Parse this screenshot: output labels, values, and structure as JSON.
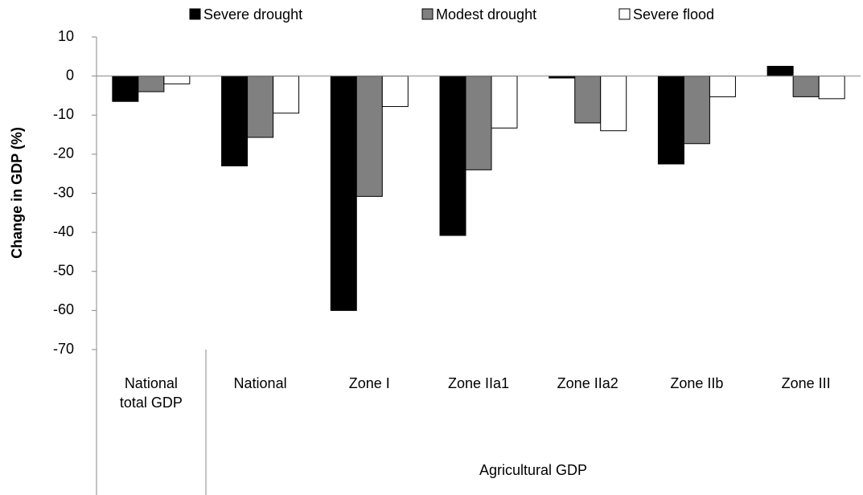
{
  "chart_data": {
    "type": "bar",
    "y_label": "Change in GDP (%)",
    "categories": [
      "National total GDP",
      "National",
      "Zone I",
      "Zone IIa1",
      "Zone IIa2",
      "Zone IIb",
      "Zone III"
    ],
    "group_label": "Agricultural GDP",
    "series": [
      {
        "name": "Severe drought",
        "color": "#000000",
        "values": [
          -6.5,
          -23,
          -60,
          -40.8,
          -0.5,
          -22.5,
          2.5
        ]
      },
      {
        "name": "Modest drought",
        "color": "#808080",
        "values": [
          -4,
          -15.7,
          -30.8,
          -24,
          -12,
          -17.3,
          -5.3
        ]
      },
      {
        "name": "Severe flood",
        "color": "#ffffff",
        "values": [
          -2,
          -9.5,
          -7.8,
          -13.3,
          -14,
          -5.3,
          -5.8
        ]
      }
    ],
    "ylim": [
      -70,
      10
    ],
    "yticks": [
      -70,
      -60,
      -50,
      -40,
      -30,
      -20,
      -10,
      0,
      10
    ],
    "grid": false
  }
}
